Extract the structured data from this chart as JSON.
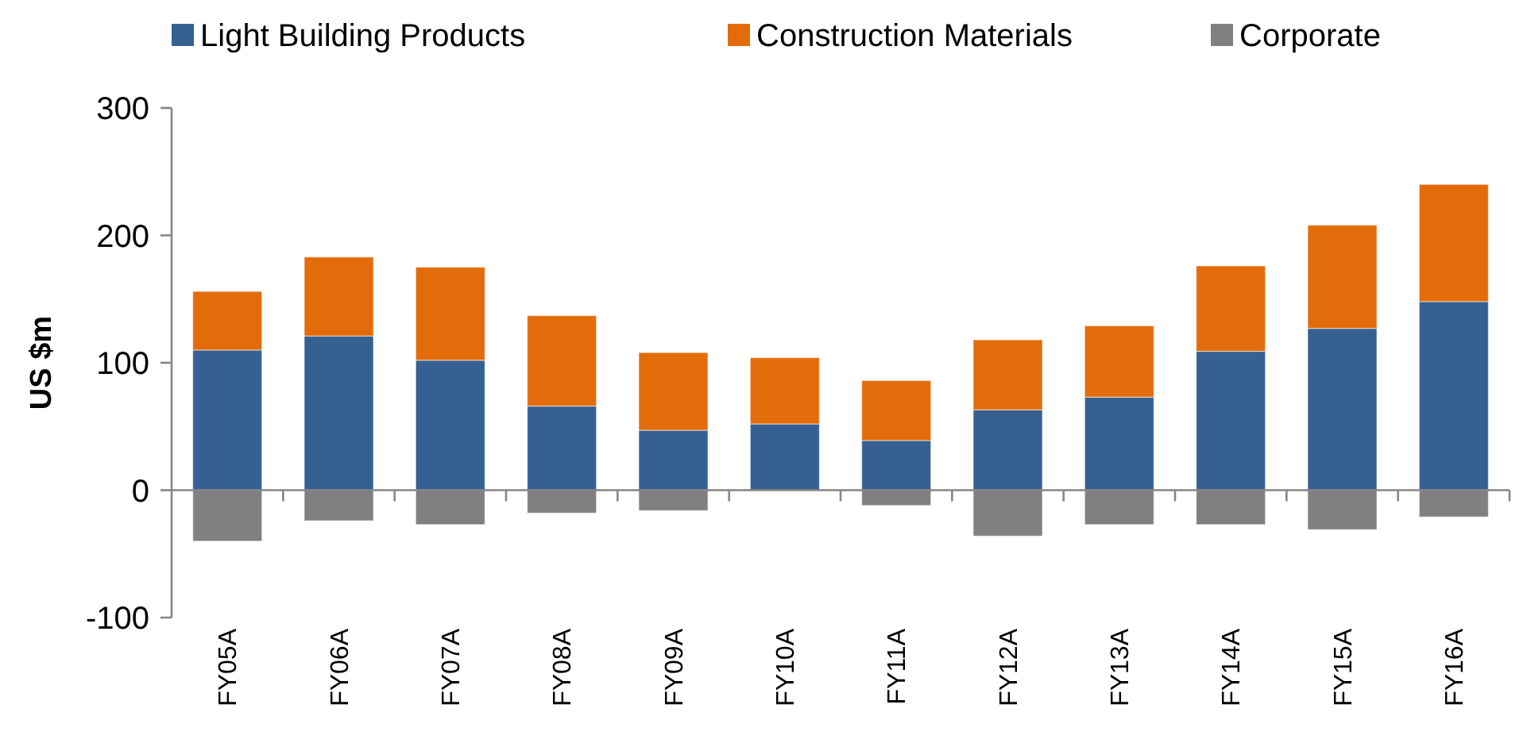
{
  "chart_data": {
    "type": "bar",
    "stacked": true,
    "ylabel": "US $m",
    "legend": "top",
    "categories": [
      "FY05A",
      "FY06A",
      "FY07A",
      "FY08A",
      "FY09A",
      "FY10A",
      "FY11A",
      "FY12A",
      "FY13A",
      "FY14A",
      "FY15A",
      "FY16A"
    ],
    "ylim": [
      -100,
      300
    ],
    "yticks": [
      -100,
      0,
      100,
      200,
      300
    ],
    "series": [
      {
        "name": "Light Building Products",
        "color": "#366092",
        "values": [
          110,
          121,
          102,
          66,
          47,
          52,
          39,
          63,
          73,
          109,
          127,
          148
        ]
      },
      {
        "name": "Construction Materials",
        "color": "#e36c0a",
        "values": [
          46,
          62,
          73,
          71,
          61,
          52,
          47,
          55,
          56,
          67,
          81,
          92
        ]
      },
      {
        "name": "Corporate",
        "color": "#808080",
        "values": [
          -40,
          -24,
          -27,
          -18,
          -16,
          0,
          -12,
          -36,
          -27,
          -27,
          -31,
          -21
        ]
      }
    ]
  }
}
